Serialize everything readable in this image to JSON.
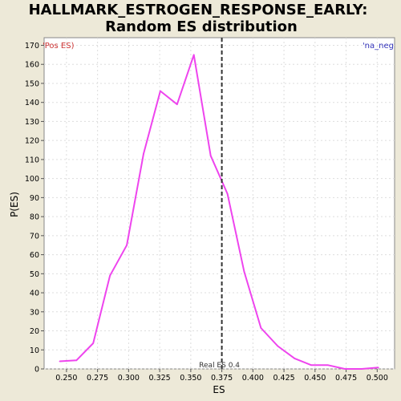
{
  "chart_data": {
    "type": "line",
    "title": "HALLMARK_ESTROGEN_RESPONSE_EARLY:",
    "subtitle": "Random ES distribution",
    "xlabel": "ES",
    "ylabel": "P(ES)",
    "xlim": [
      0.232,
      0.514
    ],
    "ylim": [
      0,
      174
    ],
    "x_ticks": [
      0.25,
      0.275,
      0.3,
      0.325,
      0.35,
      0.375,
      0.4,
      0.425,
      0.45,
      0.475,
      0.5
    ],
    "x_tick_labels": [
      "0.250",
      "0.275",
      "0.300",
      "0.325",
      "0.350",
      "0.375",
      "0.400",
      "0.425",
      "0.450",
      "0.475",
      "0.500"
    ],
    "y_ticks": [
      0,
      10,
      20,
      30,
      40,
      50,
      60,
      70,
      80,
      90,
      100,
      110,
      120,
      130,
      140,
      150,
      160,
      170
    ],
    "y_tick_labels": [
      "0",
      "10",
      "20",
      "30",
      "40",
      "50",
      "60",
      "70",
      "80",
      "90",
      "100",
      "110",
      "120",
      "130",
      "140",
      "150",
      "160",
      "170"
    ],
    "grid": true,
    "series": [
      {
        "color": "#ee44ee",
        "x": [
          0.2445,
          0.258,
          0.2715,
          0.285,
          0.2985,
          0.312,
          0.3255,
          0.339,
          0.3525,
          0.366,
          0.3795,
          0.393,
          0.4065,
          0.42,
          0.4335,
          0.447,
          0.4605,
          0.474,
          0.4875,
          0.501
        ],
        "y": [
          4,
          4.5,
          13.5,
          49,
          65,
          113,
          146,
          139,
          165,
          112,
          92,
          51,
          21.5,
          12,
          5.5,
          2,
          2,
          0,
          0,
          0.7
        ]
      }
    ],
    "real_es": {
      "value": 0.375,
      "label": "Real ES 0.4"
    },
    "corner_left_text": "'Pos ES)",
    "corner_right_text": "'na_neg",
    "colors": {
      "background": "#ede9d8",
      "plot_background": "#ffffff",
      "line": "#ee44ee",
      "real_es_line": "#333333",
      "corner_left": "#cc3333",
      "corner_right": "#3333bb",
      "grid": "#dddddd"
    }
  }
}
